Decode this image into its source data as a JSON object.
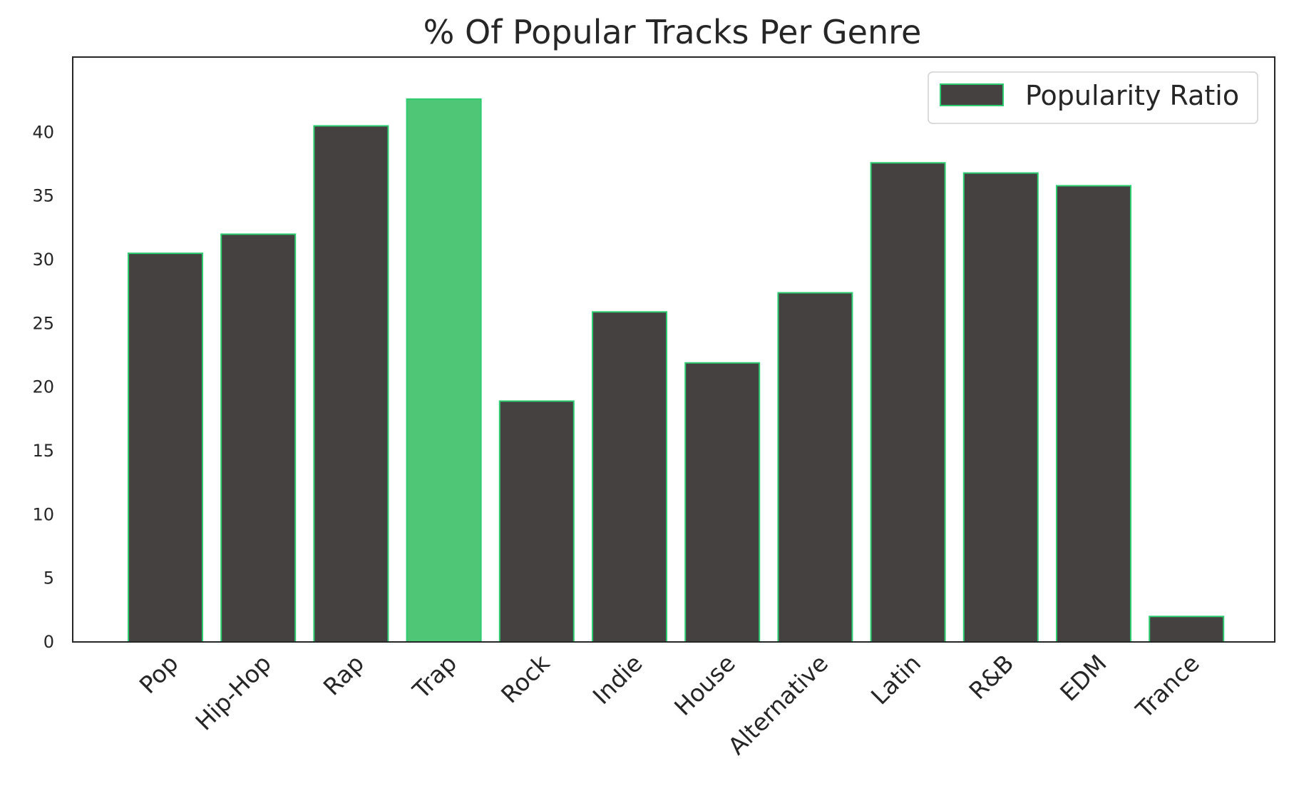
{
  "chart_data": {
    "type": "bar",
    "title": "% Of Popular Tracks Per Genre",
    "xlabel": "",
    "ylabel": "",
    "categories": [
      "Pop",
      "Hip-Hop",
      "Rap",
      "Trap",
      "Rock",
      "Indie",
      "House",
      "Alternative",
      "Latin",
      "R&B",
      "EDM",
      "Trance"
    ],
    "series": [
      {
        "name": "Popularity Ratio",
        "values": [
          30.5,
          32.0,
          40.5,
          42.6,
          18.9,
          25.9,
          21.9,
          27.4,
          37.6,
          36.8,
          35.8,
          2.0
        ]
      }
    ],
    "highlight_index": 3,
    "yticks": [
      0,
      5,
      10,
      15,
      20,
      25,
      30,
      35,
      40
    ],
    "ylim": [
      0,
      45.9
    ],
    "grid": false,
    "legend_position": "top-right",
    "colors": {
      "bar_fill": "#454141",
      "bar_edge": "#2ecc71",
      "highlight_fill": "#4fc676",
      "axis": "#262626"
    }
  }
}
